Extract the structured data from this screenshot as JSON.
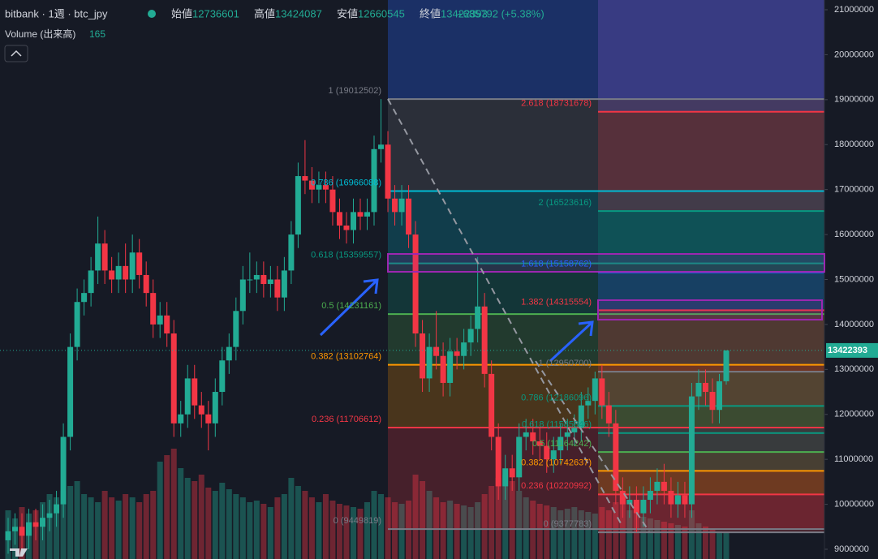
{
  "chart_data": {
    "type": "candlestick",
    "title": "bitbank · 1週 · btc_jpy",
    "ohlc_labels": [
      "始値",
      "高値",
      "安値",
      "終値"
    ],
    "change": "+685792 (+5.38%)",
    "volume_title": "Volume (出来高)",
    "up_color": "#22ab94",
    "down_color": "#f23645",
    "ylim": [
      9000000,
      21000000
    ],
    "yticks": [
      9000000,
      10000000,
      11000000,
      12000000,
      13000000,
      14000000,
      15000000,
      16000000,
      17000000,
      18000000,
      19000000,
      20000000,
      21000000
    ],
    "candles": [
      [
        9200000,
        9700000,
        8900000,
        9400000
      ],
      [
        9400000,
        9800000,
        9100000,
        9500000
      ],
      [
        9500000,
        9800000,
        9000000,
        9300000
      ],
      [
        9300000,
        9900000,
        9000000,
        9600000
      ],
      [
        9600000,
        9900000,
        9200000,
        9500000
      ],
      [
        9500000,
        10000000,
        9200000,
        9700000
      ],
      [
        9700000,
        10100000,
        9400000,
        9800000
      ],
      [
        9800000,
        10300000,
        9500000,
        10000000
      ],
      [
        10000000,
        11800000,
        9700000,
        11500000
      ],
      [
        11500000,
        13800000,
        11200000,
        13500000
      ],
      [
        13500000,
        14800000,
        13200000,
        14500000
      ],
      [
        14500000,
        15000000,
        14200000,
        14700000
      ],
      [
        14700000,
        15500000,
        14400000,
        15200000
      ],
      [
        15200000,
        16400000,
        14900000,
        15800000
      ],
      [
        15800000,
        16100000,
        14900000,
        15200000
      ],
      [
        15200000,
        15500000,
        14700000,
        15000000
      ],
      [
        15000000,
        15600000,
        14700000,
        15300000
      ],
      [
        15300000,
        15800000,
        14700000,
        15000000
      ],
      [
        15000000,
        16000000,
        14700000,
        15600000
      ],
      [
        15600000,
        15900000,
        14800000,
        15100000
      ],
      [
        15100000,
        15400000,
        14400000,
        14700000
      ],
      [
        14700000,
        15000000,
        13700000,
        14000000
      ],
      [
        14000000,
        14500000,
        13700000,
        14200000
      ],
      [
        14200000,
        14500000,
        13500000,
        13800000
      ],
      [
        13800000,
        14100000,
        11500000,
        11800000
      ],
      [
        11800000,
        12300000,
        11500000,
        12000000
      ],
      [
        12000000,
        13100000,
        11700000,
        12800000
      ],
      [
        12800000,
        13100000,
        11900000,
        12200000
      ],
      [
        12200000,
        12500000,
        11700000,
        12000000
      ],
      [
        12000000,
        12300000,
        11200000,
        11800000
      ],
      [
        11800000,
        12800000,
        11500000,
        12500000
      ],
      [
        12500000,
        13500000,
        12200000,
        13200000
      ],
      [
        13200000,
        13800000,
        12900000,
        13500000
      ],
      [
        13500000,
        14600000,
        13200000,
        14300000
      ],
      [
        14300000,
        15300000,
        14000000,
        15000000
      ],
      [
        15000000,
        15600000,
        14700000,
        15000000
      ],
      [
        15000000,
        15400000,
        14700000,
        15100000
      ],
      [
        15100000,
        15400000,
        14600000,
        14900000
      ],
      [
        14900000,
        15300000,
        14600000,
        15000000
      ],
      [
        15000000,
        15300000,
        14300000,
        14600000
      ],
      [
        14600000,
        15500000,
        14300000,
        15200000
      ],
      [
        15200000,
        16300000,
        14900000,
        16000000
      ],
      [
        16000000,
        17600000,
        15700000,
        17300000
      ],
      [
        17300000,
        18100000,
        16900000,
        17200000
      ],
      [
        17200000,
        17500000,
        16700000,
        17000000
      ],
      [
        17000000,
        17400000,
        16700000,
        17100000
      ],
      [
        17100000,
        17400000,
        16700000,
        17000000
      ],
      [
        17000000,
        17300000,
        16200000,
        16500000
      ],
      [
        16500000,
        16800000,
        15900000,
        16200000
      ],
      [
        16200000,
        16500000,
        15800000,
        16100000
      ],
      [
        16100000,
        16800000,
        15800000,
        16500000
      ],
      [
        16500000,
        16800000,
        16100000,
        16400000
      ],
      [
        16400000,
        16800000,
        16100000,
        16500000
      ],
      [
        16500000,
        18200000,
        16200000,
        17900000
      ],
      [
        17900000,
        19012502,
        17600000,
        18000000
      ],
      [
        18000000,
        18300000,
        16500000,
        16800000
      ],
      [
        16800000,
        17100000,
        16200000,
        16500000
      ],
      [
        16500000,
        17100000,
        16200000,
        16800000
      ],
      [
        16800000,
        17100000,
        15700000,
        16000000
      ],
      [
        16000000,
        16300000,
        13500000,
        13800000
      ],
      [
        13800000,
        14100000,
        12500000,
        12800000
      ],
      [
        12800000,
        13800000,
        12500000,
        13500000
      ],
      [
        13500000,
        14300000,
        13000000,
        13300000
      ],
      [
        13300000,
        13600000,
        12400000,
        12700000
      ],
      [
        12700000,
        13700000,
        12400000,
        13400000
      ],
      [
        13400000,
        13700000,
        13000000,
        13300000
      ],
      [
        13300000,
        13900000,
        13000000,
        13600000
      ],
      [
        13600000,
        14200000,
        13300000,
        13900000
      ],
      [
        13900000,
        15500000,
        13600000,
        14400000
      ],
      [
        14400000,
        14700000,
        12600000,
        12900000
      ],
      [
        12900000,
        13200000,
        11200000,
        11500000
      ],
      [
        11500000,
        11800000,
        10100000,
        10400000
      ],
      [
        10400000,
        11100000,
        10100000,
        10800000
      ],
      [
        10800000,
        11100000,
        10300000,
        10600000
      ],
      [
        10600000,
        11800000,
        10300000,
        11500000
      ],
      [
        11500000,
        11900000,
        11200000,
        11600000
      ],
      [
        11600000,
        11900000,
        11100000,
        11400000
      ],
      [
        11400000,
        11700000,
        11000000,
        11300000
      ],
      [
        11300000,
        11600000,
        10700000,
        11000000
      ],
      [
        11000000,
        11500000,
        10700000,
        11200000
      ],
      [
        11200000,
        11800000,
        10900000,
        11500000
      ],
      [
        11500000,
        11900000,
        11200000,
        11600000
      ],
      [
        11600000,
        12000000,
        11300000,
        11700000
      ],
      [
        11700000,
        12500000,
        11400000,
        12200000
      ],
      [
        12200000,
        12600000,
        11900000,
        12300000
      ],
      [
        12300000,
        12950700,
        12000000,
        12800000
      ],
      [
        12800000,
        13100000,
        11900000,
        12200000
      ],
      [
        12200000,
        12500000,
        11500000,
        11800000
      ],
      [
        11800000,
        12100000,
        10000000,
        10300000
      ],
      [
        10300000,
        10600000,
        9700000,
        10000000
      ],
      [
        10000000,
        10400000,
        9700000,
        10100000
      ],
      [
        10100000,
        10400000,
        9377783,
        9800000
      ],
      [
        9800000,
        10400000,
        9500000,
        10100000
      ],
      [
        10100000,
        10600000,
        9800000,
        10300000
      ],
      [
        10300000,
        10800000,
        10000000,
        10500000
      ],
      [
        10500000,
        10900000,
        10000000,
        10300000
      ],
      [
        10300000,
        10600000,
        9700000,
        10000000
      ],
      [
        10000000,
        10500000,
        9700000,
        10200000
      ],
      [
        10200000,
        10500000,
        9700000,
        10000000
      ],
      [
        10000000,
        12700000,
        9700000,
        12400000
      ],
      [
        12400000,
        13000000,
        12100000,
        12700000
      ],
      [
        12700000,
        13000000,
        12200000,
        12500000
      ],
      [
        12500000,
        12800000,
        11800000,
        12100000
      ],
      [
        12100000,
        12900000,
        11800000,
        12736601
      ],
      [
        12736601,
        13424087,
        12660545,
        13422393
      ]
    ],
    "volume": [
      300,
      250,
      320,
      280,
      300,
      350,
      400,
      380,
      420,
      450,
      480,
      400,
      380,
      350,
      420,
      380,
      360,
      400,
      380,
      350,
      400,
      420,
      600,
      640,
      680,
      560,
      500,
      480,
      520,
      440,
      420,
      470,
      430,
      400,
      380,
      350,
      360,
      340,
      320,
      380,
      400,
      500,
      450,
      420,
      380,
      350,
      400,
      360,
      340,
      330,
      320,
      310,
      350,
      420,
      400,
      380,
      350,
      340,
      360,
      520,
      480,
      420,
      380,
      350,
      360,
      340,
      330,
      320,
      350,
      400,
      450,
      500,
      520,
      480,
      420,
      380,
      360,
      340,
      330,
      320,
      300,
      310,
      320,
      300,
      290,
      280,
      320,
      300,
      350,
      400,
      300,
      280,
      260,
      250,
      240,
      230,
      220,
      210,
      200,
      300,
      220,
      200,
      180,
      170,
      165
    ],
    "fibs": [
      {
        "top_fill": "#2962ff",
        "levels": [
          {
            "value": 19012502,
            "label": "1 (19012502)",
            "color": "#787b86"
          },
          {
            "value": 16966088,
            "label": "0.786 (16966088)",
            "color": "#00bcd4"
          },
          {
            "value": 15359557,
            "label": "0.618 (15359557)",
            "color": "#089981"
          },
          {
            "value": 14231161,
            "label": "0.5 (14231161)",
            "color": "#4caf50"
          },
          {
            "value": 13102764,
            "label": "0.382 (13102764)",
            "color": "#ff9800"
          },
          {
            "value": 11706612,
            "label": "0.236 (11706612)",
            "color": "#f23645"
          },
          {
            "value": 9449819,
            "label": "0 (9449819)",
            "color": "#787b86"
          }
        ]
      },
      {
        "top_fill": "#7e57c2",
        "levels": [
          {
            "value": 18731678,
            "label": "2.618 (18731678)",
            "color": "#f23645"
          },
          {
            "value": 16523616,
            "label": "2 (16523616)",
            "color": "#089981"
          },
          {
            "value": 15158762,
            "label": "1.618 (15158762)",
            "color": "#2962ff"
          },
          {
            "value": 14315554,
            "label": "1.382 (14315554)",
            "color": "#f23645"
          },
          {
            "value": 12950700,
            "label": "1 (12950700)",
            "color": "#787b86"
          },
          {
            "value": 12186096,
            "label": "0.786 (12186096)",
            "color": "#089981"
          },
          {
            "value": 11585846,
            "label": "0.618 (11585846)",
            "color": "#089981"
          },
          {
            "value": 11164242,
            "label": "0.5 (11164242)",
            "color": "#4caf50"
          },
          {
            "value": 10742637,
            "label": "0.382 (10742637)",
            "color": "#ff9800"
          },
          {
            "value": 10220992,
            "label": "0.236 (10220992)",
            "color": "#f23645"
          },
          {
            "value": 9377783,
            "label": "0 (9377783)",
            "color": "#787b86"
          }
        ]
      }
    ]
  }
}
